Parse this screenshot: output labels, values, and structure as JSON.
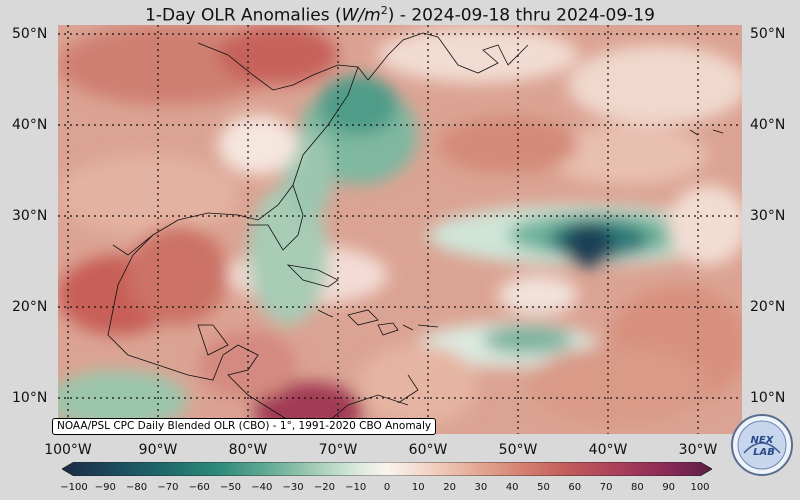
{
  "title": "1-Day OLR Anomalies (W/m²) - 2024-09-18 thru 2024-09-19",
  "title_parts": {
    "pre": "1-Day OLR Anomalies (",
    "unit_w": "W",
    "unit_m": "/m",
    "unit_exp": "2",
    "post": ") - 2024-09-18 thru 2024-09-19"
  },
  "lat_labels": [
    "50°N",
    "40°N",
    "30°N",
    "20°N",
    "10°N"
  ],
  "lon_labels": [
    "100°W",
    "90°W",
    "80°W",
    "70°W",
    "60°W",
    "50°W",
    "40°W",
    "30°W"
  ],
  "source_text": "NOAA/PSL CPC Daily Blended OLR (CBO) - 1°, 1991-2020 CBO Anomaly",
  "colorbar": {
    "min": -100,
    "max": 100,
    "ticks": [
      "−100",
      "−90",
      "−80",
      "−70",
      "−60",
      "−50",
      "−40",
      "−30",
      "−20",
      "−10",
      "0",
      "10",
      "20",
      "30",
      "40",
      "50",
      "60",
      "70",
      "80",
      "90",
      "100"
    ],
    "colors": [
      "#1b2a44",
      "#1d4a5c",
      "#1e6a6c",
      "#2e8a7a",
      "#5ea892",
      "#9cc8b0",
      "#d6e8dc",
      "#fbf4ef",
      "#f1d0c0",
      "#e3a894",
      "#d48070",
      "#c05a5a",
      "#a83e5a",
      "#8a2a58",
      "#5c1e44"
    ]
  },
  "logo_text": "NEXLAB",
  "map_extent": {
    "lon_min": -102,
    "lon_max": -26,
    "lat_min": 6,
    "lat_max": 51
  },
  "colors": {
    "background": "#d9d9d9",
    "ocean_warm": "#d99c8a",
    "anomaly_dark": "#17314a"
  }
}
